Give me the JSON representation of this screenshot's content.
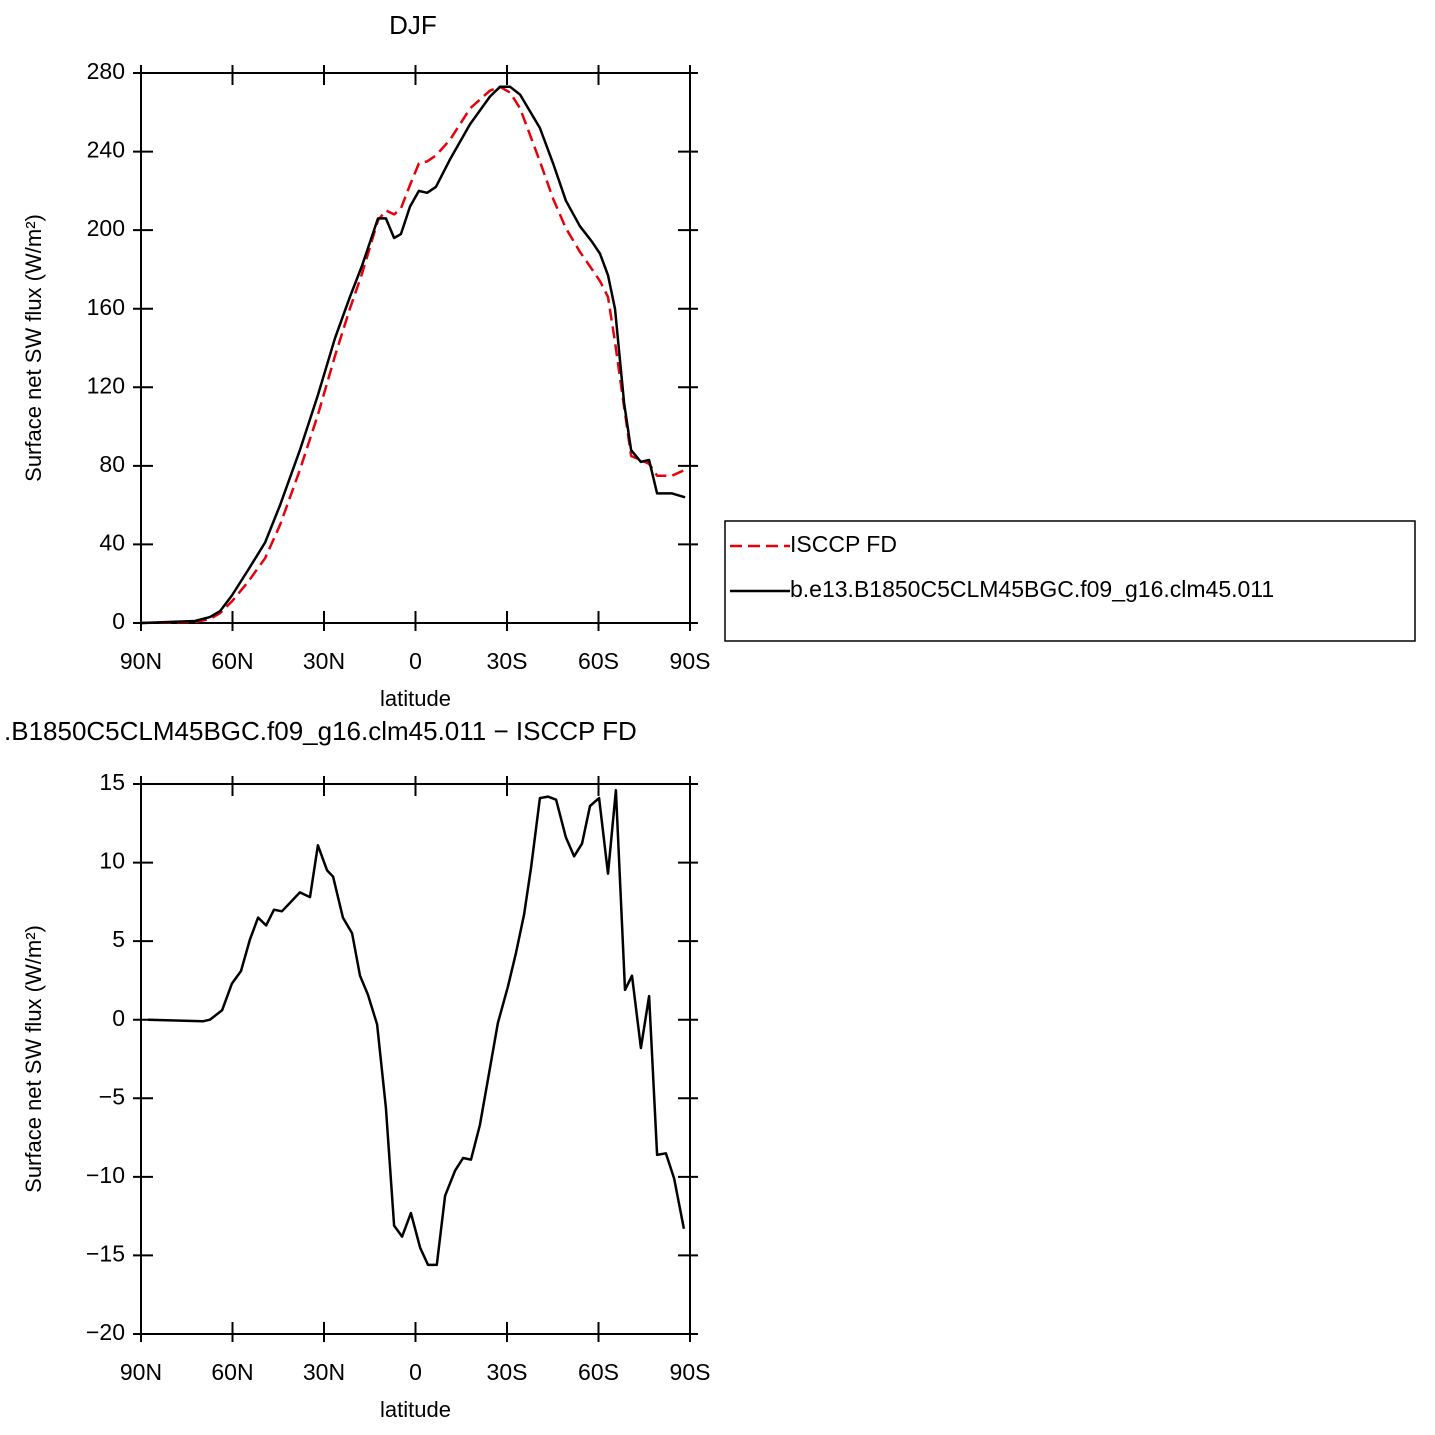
{
  "chart_data": [
    {
      "type": "line",
      "title": "DJF",
      "xlabel": "latitude",
      "ylabel": "Surface net SW flux (W/m²)",
      "xlim": [
        90,
        -90
      ],
      "ylim": [
        0,
        280
      ],
      "xticks": [
        {
          "value": 90,
          "label": "90N"
        },
        {
          "value": 60,
          "label": "60N"
        },
        {
          "value": 30,
          "label": "30N"
        },
        0,
        {
          "value": -30,
          "label": "30S"
        },
        {
          "value": -60,
          "label": "60S"
        },
        {
          "value": -90,
          "label": "90S"
        }
      ],
      "yticks": [
        0,
        40,
        80,
        120,
        160,
        200,
        240,
        280
      ],
      "grid": false,
      "legend": "right",
      "x": [
        90,
        72.3,
        67.4,
        64.1,
        60.2,
        54.9,
        49.3,
        44.4,
        37.9,
        32,
        26.4,
        21.5,
        17.5,
        12.3,
        9.7,
        7,
        4.8,
        1.8,
        -1.1,
        -3.8,
        -6.7,
        -11.3,
        -17.9,
        -24.4,
        -27.7,
        -31,
        -34.3,
        -40.8,
        -45.1,
        -49.3,
        -53.9,
        -57.9,
        -60.5,
        -63.1,
        -65.4,
        -68.4,
        -70.7,
        -73.9,
        -76.6,
        -79.2,
        -84.1,
        -88.4
      ],
      "series": [
        {
          "name": "ISCCP FD",
          "color": "#e8000b",
          "line_style": "dashed",
          "values": [
            0,
            0.5,
            2,
            5,
            11,
            21,
            33,
            50,
            78,
            106,
            136,
            160,
            178,
            205,
            210,
            208,
            211,
            223,
            234,
            235,
            238,
            246,
            262,
            271,
            273,
            270,
            262,
            235,
            216,
            201,
            189,
            180,
            174,
            166,
            143,
            110,
            85,
            83,
            81,
            75,
            75,
            78
          ]
        },
        {
          "name": "b.e13.B1850C5CLM45BGC.f09_g16.clm45.011",
          "color": "#000000",
          "line_style": "solid",
          "values": [
            0,
            1,
            3,
            6,
            14,
            27,
            41,
            60,
            88,
            116,
            145,
            166,
            182,
            206,
            206,
            196,
            198,
            212,
            220,
            219,
            222,
            236,
            254,
            268,
            273,
            273,
            269,
            252,
            234,
            215,
            202,
            194,
            188,
            177,
            160,
            112,
            88,
            82,
            83,
            66,
            66,
            64
          ]
        }
      ]
    },
    {
      "type": "line",
      "title": ".B1850C5CLM45BGC.f09_g16.clm45.011 − ISCCP FD",
      "xlabel": "latitude",
      "ylabel": "Surface net SW flux (W/m²)",
      "xlim": [
        90,
        -90
      ],
      "ylim": [
        -20,
        15
      ],
      "xticks": [
        {
          "value": 90,
          "label": "90N"
        },
        {
          "value": 60,
          "label": "60N"
        },
        {
          "value": 30,
          "label": "30N"
        },
        0,
        {
          "value": -30,
          "label": "30S"
        },
        {
          "value": -60,
          "label": "60S"
        },
        {
          "value": -90,
          "label": "90S"
        }
      ],
      "yticks": [
        {
          "value": -20,
          "label": "−20"
        },
        {
          "value": -15,
          "label": "−15"
        },
        {
          "value": -10,
          "label": "−10"
        },
        {
          "value": -5,
          "label": "−5"
        },
        0,
        5,
        10,
        15
      ],
      "grid": false,
      "color": "#000000",
      "x": [
        87.7,
        69.7,
        67.4,
        63.4,
        60.2,
        57.2,
        54.3,
        51.6,
        49,
        46.4,
        43.8,
        37.9,
        34.6,
        32,
        29,
        27,
        23.8,
        20.8,
        18.2,
        15.6,
        12.6,
        9.7,
        7,
        4.4,
        1.5,
        -1.5,
        -4.1,
        -7,
        -9.7,
        -13,
        -15.6,
        -18.2,
        -21.1,
        -24.4,
        -27,
        -30.3,
        -32.9,
        -35.6,
        -37.9,
        -40.8,
        -43.4,
        -46.1,
        -49.3,
        -52,
        -54.6,
        -57.2,
        -60.2,
        -63.1,
        -65.7,
        -68.7,
        -71,
        -73.9,
        -76.6,
        -79.2,
        -82.1,
        -84.8,
        -88
      ],
      "values": [
        0,
        -0.1,
        0,
        0.6,
        2.3,
        3.1,
        5.1,
        6.5,
        6,
        7,
        6.9,
        8.1,
        7.8,
        11.1,
        9.5,
        9.1,
        6.5,
        5.5,
        2.8,
        1.6,
        -0.3,
        -5.6,
        -13.1,
        -13.8,
        -12.3,
        -14.5,
        -15.6,
        -15.6,
        -11.2,
        -9.6,
        -8.8,
        -8.9,
        -6.7,
        -3.1,
        -0.2,
        2.1,
        4.2,
        6.7,
        9.7,
        14.1,
        14.2,
        14,
        11.6,
        10.4,
        11.2,
        13.6,
        14.1,
        9.3,
        14.6,
        1.9,
        2.8,
        -1.8,
        1.5,
        -8.6,
        -8.5,
        -10.1,
        -13.3
      ]
    }
  ]
}
